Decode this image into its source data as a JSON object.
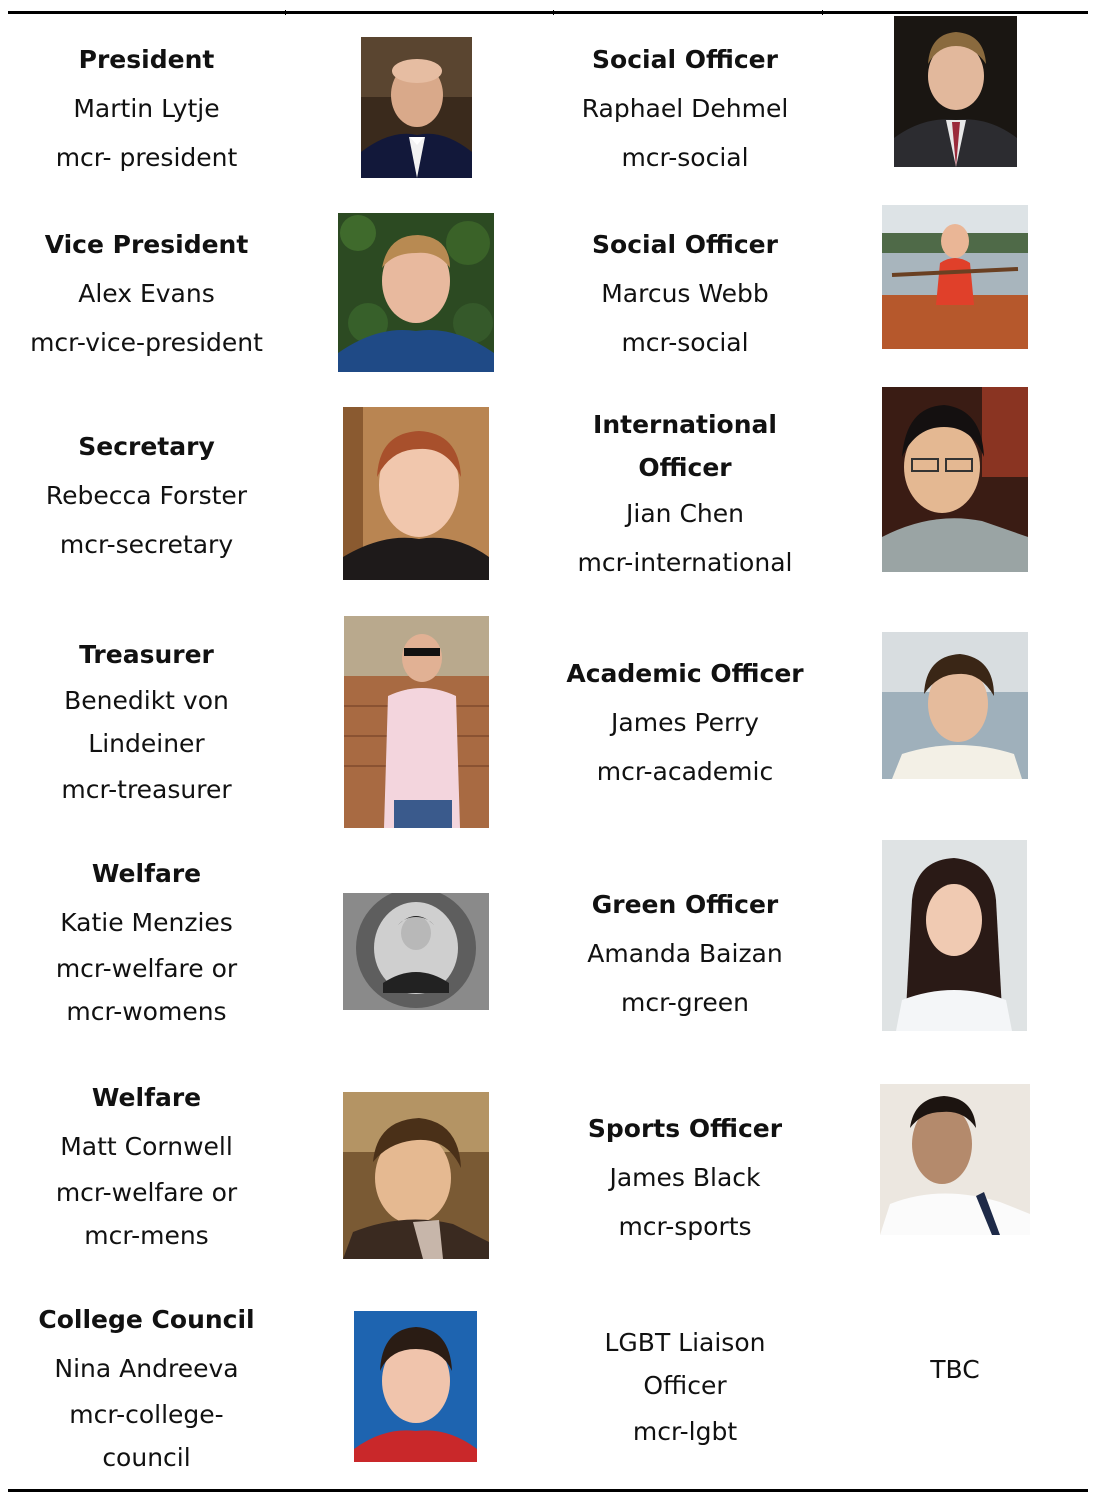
{
  "left_column": [
    {
      "title": "President",
      "lines": [
        "Martin Lytje",
        "mcr- president"
      ]
    },
    {
      "title": "Vice President",
      "lines": [
        "Alex Evans",
        "mcr-vice-president"
      ]
    },
    {
      "title": "Secretary",
      "lines": [
        "Rebecca Forster",
        "mcr-secretary"
      ]
    },
    {
      "title": "Treasurer",
      "lines": [
        "Benedikt von",
        "Lindeiner",
        "mcr-treasurer"
      ]
    },
    {
      "title": "Welfare",
      "lines": [
        "Katie Menzies",
        "mcr-welfare or",
        "mcr-womens"
      ]
    },
    {
      "title": "Welfare",
      "lines": [
        "Matt Cornwell",
        "mcr-welfare or",
        "mcr-mens"
      ]
    },
    {
      "title": "College Council",
      "lines": [
        "Nina Andreeva",
        "mcr-college-",
        "council"
      ]
    }
  ],
  "right_column": [
    {
      "title": "Social Officer",
      "lines": [
        "Raphael Dehmel",
        "mcr-social"
      ]
    },
    {
      "title": "Social Officer",
      "lines": [
        "Marcus Webb",
        "mcr-social"
      ]
    },
    {
      "title_lines": [
        "International",
        "Officer"
      ],
      "lines": [
        "Jian Chen",
        "mcr-international"
      ]
    },
    {
      "title": "Academic Officer",
      "lines": [
        "James Perry",
        "mcr-academic"
      ]
    },
    {
      "title": "Green Officer",
      "lines": [
        "Amanda Baizan",
        "mcr-green"
      ]
    },
    {
      "title": "Sports Officer",
      "lines": [
        "James Black",
        "mcr-sports"
      ]
    },
    {
      "lines": [
        "LGBT Liaison",
        "Officer",
        "mcr-lgbt"
      ],
      "photo_text": "TBC"
    }
  ]
}
